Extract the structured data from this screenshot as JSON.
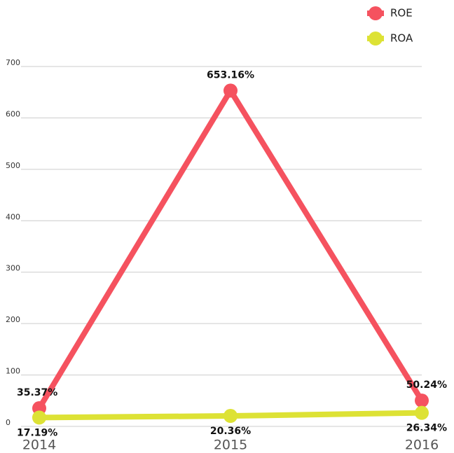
{
  "chart_data": {
    "type": "line",
    "categories": [
      "2014",
      "2015",
      "2016"
    ],
    "series": [
      {
        "name": "ROE",
        "color": "#f5525f",
        "values": [
          35.37,
          653.16,
          50.24
        ],
        "value_labels": [
          "35.37%",
          "653.16%",
          "50.24%"
        ]
      },
      {
        "name": "ROA",
        "color": "#dde235",
        "values": [
          17.19,
          20.36,
          26.34
        ],
        "value_labels": [
          "17.19%",
          "20.36%",
          "26.34%"
        ]
      }
    ],
    "ylim": [
      0,
      700
    ],
    "yticks": [
      0,
      100,
      200,
      300,
      400,
      500,
      600,
      700
    ],
    "grid": true,
    "legend": "top-right"
  }
}
